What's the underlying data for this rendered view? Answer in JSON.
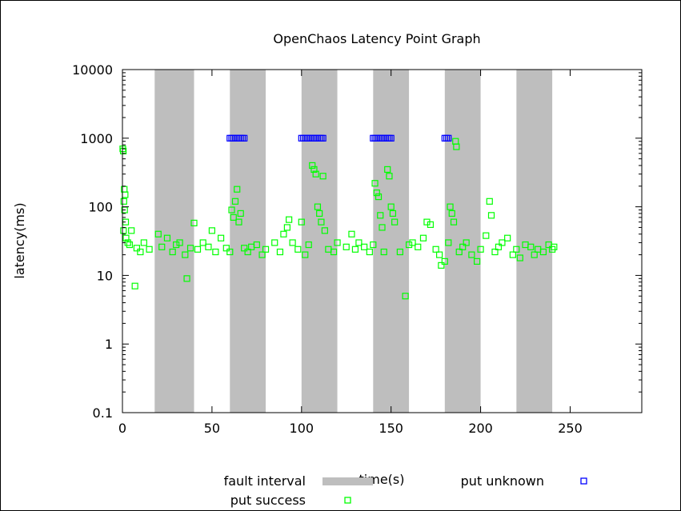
{
  "chart_data": {
    "type": "scatter",
    "title": "OpenChaos Latency Point Graph",
    "xlabel": "time(s)",
    "ylabel": "latency(ms)",
    "xlim": [
      0,
      290
    ],
    "ylim": [
      0.1,
      10000
    ],
    "y_scale": "log",
    "x_ticks": [
      0,
      50,
      100,
      150,
      200,
      250
    ],
    "x_tick_labels": [
      "0",
      "50",
      "100",
      "150",
      "200",
      "250"
    ],
    "y_ticks": [
      0.1,
      1,
      10,
      100,
      1000,
      10000
    ],
    "y_tick_labels": [
      "0.1",
      "1",
      "10",
      "100",
      "1000",
      "10000"
    ],
    "grid": false,
    "legend_position": "bottom",
    "fault_intervals": [
      [
        18,
        40
      ],
      [
        60,
        80
      ],
      [
        100,
        120
      ],
      [
        140,
        160
      ],
      [
        180,
        200
      ],
      [
        220,
        240
      ]
    ],
    "series": [
      {
        "name": "put success",
        "color": "#00ff00",
        "marker": "open-square",
        "points": [
          [
            0.2,
            700
          ],
          [
            0.5,
            650
          ],
          [
            0.8,
            120
          ],
          [
            1.0,
            180
          ],
          [
            1.2,
            90
          ],
          [
            1.5,
            150
          ],
          [
            1.8,
            60
          ],
          [
            0.6,
            45
          ],
          [
            2,
            35
          ],
          [
            3,
            30
          ],
          [
            4,
            28
          ],
          [
            5,
            45
          ],
          [
            7,
            7
          ],
          [
            8,
            25
          ],
          [
            10,
            22
          ],
          [
            12,
            30
          ],
          [
            15,
            24
          ],
          [
            20,
            40
          ],
          [
            22,
            26
          ],
          [
            25,
            35
          ],
          [
            28,
            22
          ],
          [
            30,
            28
          ],
          [
            32,
            30
          ],
          [
            35,
            20
          ],
          [
            36,
            9
          ],
          [
            38,
            25
          ],
          [
            40,
            58
          ],
          [
            42,
            24
          ],
          [
            45,
            30
          ],
          [
            48,
            26
          ],
          [
            50,
            45
          ],
          [
            52,
            22
          ],
          [
            55,
            35
          ],
          [
            58,
            25
          ],
          [
            60,
            22
          ],
          [
            61,
            90
          ],
          [
            62,
            70
          ],
          [
            63,
            120
          ],
          [
            64,
            180
          ],
          [
            65,
            60
          ],
          [
            66,
            80
          ],
          [
            68,
            25
          ],
          [
            70,
            22
          ],
          [
            72,
            26
          ],
          [
            75,
            28
          ],
          [
            78,
            20
          ],
          [
            80,
            24
          ],
          [
            85,
            30
          ],
          [
            88,
            22
          ],
          [
            90,
            40
          ],
          [
            92,
            50
          ],
          [
            93,
            65
          ],
          [
            95,
            30
          ],
          [
            98,
            24
          ],
          [
            100,
            60
          ],
          [
            102,
            20
          ],
          [
            104,
            28
          ],
          [
            106,
            400
          ],
          [
            107,
            350
          ],
          [
            108,
            300
          ],
          [
            109,
            100
          ],
          [
            110,
            80
          ],
          [
            111,
            60
          ],
          [
            112,
            280
          ],
          [
            113,
            45
          ],
          [
            115,
            24
          ],
          [
            118,
            22
          ],
          [
            120,
            30
          ],
          [
            125,
            26
          ],
          [
            128,
            40
          ],
          [
            130,
            24
          ],
          [
            132,
            30
          ],
          [
            135,
            26
          ],
          [
            138,
            22
          ],
          [
            140,
            28
          ],
          [
            141,
            220
          ],
          [
            142,
            160
          ],
          [
            143,
            140
          ],
          [
            144,
            75
          ],
          [
            145,
            50
          ],
          [
            146,
            22
          ],
          [
            148,
            350
          ],
          [
            149,
            280
          ],
          [
            150,
            100
          ],
          [
            151,
            80
          ],
          [
            152,
            60
          ],
          [
            155,
            22
          ],
          [
            158,
            5
          ],
          [
            160,
            28
          ],
          [
            162,
            30
          ],
          [
            165,
            26
          ],
          [
            168,
            35
          ],
          [
            170,
            60
          ],
          [
            172,
            55
          ],
          [
            175,
            24
          ],
          [
            177,
            20
          ],
          [
            178,
            14
          ],
          [
            180,
            16
          ],
          [
            182,
            30
          ],
          [
            183,
            100
          ],
          [
            184,
            80
          ],
          [
            185,
            60
          ],
          [
            186,
            900
          ],
          [
            186.5,
            750
          ],
          [
            188,
            22
          ],
          [
            190,
            26
          ],
          [
            192,
            30
          ],
          [
            195,
            20
          ],
          [
            198,
            16
          ],
          [
            200,
            24
          ],
          [
            203,
            38
          ],
          [
            205,
            120
          ],
          [
            206,
            75
          ],
          [
            208,
            22
          ],
          [
            210,
            26
          ],
          [
            212,
            30
          ],
          [
            215,
            35
          ],
          [
            218,
            20
          ],
          [
            220,
            24
          ],
          [
            222,
            18
          ],
          [
            225,
            28
          ],
          [
            228,
            26
          ],
          [
            230,
            20
          ],
          [
            232,
            24
          ],
          [
            235,
            22
          ],
          [
            238,
            28
          ],
          [
            240,
            24
          ],
          [
            241,
            26
          ]
        ]
      },
      {
        "name": "put unknown",
        "color": "#0000ff",
        "marker": "open-square",
        "points": [
          [
            60,
            1000
          ],
          [
            61,
            1000
          ],
          [
            62,
            1000
          ],
          [
            63,
            1000
          ],
          [
            64,
            1000
          ],
          [
            65,
            1000
          ],
          [
            66,
            1000
          ],
          [
            67,
            1000
          ],
          [
            68,
            1000
          ],
          [
            100,
            1000
          ],
          [
            101,
            1000
          ],
          [
            102,
            1000
          ],
          [
            103,
            1000
          ],
          [
            104,
            1000
          ],
          [
            105,
            1000
          ],
          [
            106,
            1000
          ],
          [
            107,
            1000
          ],
          [
            108,
            1000
          ],
          [
            109,
            1000
          ],
          [
            110,
            1000
          ],
          [
            111,
            1000
          ],
          [
            112,
            1000
          ],
          [
            140,
            1000
          ],
          [
            141,
            1000
          ],
          [
            142,
            1000
          ],
          [
            143,
            1000
          ],
          [
            144,
            1000
          ],
          [
            145,
            1000
          ],
          [
            146,
            1000
          ],
          [
            147,
            1000
          ],
          [
            148,
            1000
          ],
          [
            149,
            1000
          ],
          [
            150,
            1000
          ],
          [
            180,
            1000
          ],
          [
            181,
            1000
          ],
          [
            182,
            1000
          ]
        ]
      }
    ],
    "legend": [
      {
        "label": "fault interval",
        "kind": "band",
        "color": "#bebebe"
      },
      {
        "label": "put unknown",
        "kind": "square",
        "color": "#0000ff"
      },
      {
        "label": "put success",
        "kind": "square",
        "color": "#00ff00"
      }
    ]
  }
}
